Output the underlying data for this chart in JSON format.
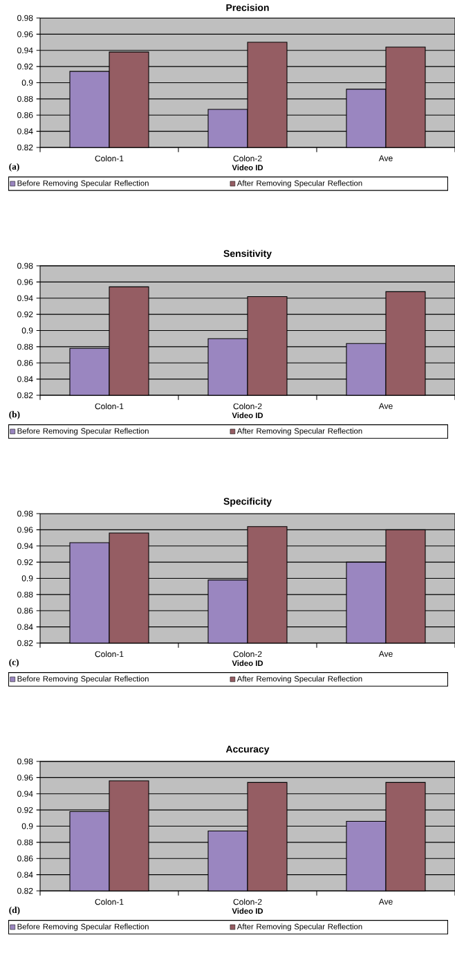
{
  "chart_data": [
    {
      "type": "bar",
      "title": "Precision",
      "xlabel": "Video ID",
      "categories": [
        "Colon-1",
        "Colon-2",
        "Ave"
      ],
      "series": [
        {
          "name": "Before Removing Specular Reflection",
          "color": "#9a86c0",
          "values": [
            0.914,
            0.867,
            0.892
          ]
        },
        {
          "name": "After Removing Specular Reflection",
          "color": "#955d63",
          "values": [
            0.938,
            0.95,
            0.944
          ]
        }
      ],
      "ylim": [
        0.82,
        0.98
      ],
      "yticks": [
        0.82,
        0.84,
        0.86,
        0.88,
        0.9,
        0.92,
        0.94,
        0.96,
        0.98
      ],
      "grid": "y",
      "legend": "bottom",
      "annotations": [
        "(a)"
      ]
    },
    {
      "type": "bar",
      "title": "Sensitivity",
      "xlabel": "Video ID",
      "categories": [
        "Colon-1",
        "Colon-2",
        "Ave"
      ],
      "series": [
        {
          "name": "Before Removing Specular Reflection",
          "color": "#9a86c0",
          "values": [
            0.878,
            0.89,
            0.884
          ]
        },
        {
          "name": "After Removing Specular Reflection",
          "color": "#955d63",
          "values": [
            0.954,
            0.942,
            0.948
          ]
        }
      ],
      "ylim": [
        0.82,
        0.98
      ],
      "yticks": [
        0.82,
        0.84,
        0.86,
        0.88,
        0.9,
        0.92,
        0.94,
        0.96,
        0.98
      ],
      "grid": "y",
      "legend": "bottom",
      "annotations": [
        "(b)"
      ]
    },
    {
      "type": "bar",
      "title": "Specificity",
      "xlabel": "Video ID",
      "categories": [
        "Colon-1",
        "Colon-2",
        "Ave"
      ],
      "series": [
        {
          "name": "Before Removing Specular Reflection",
          "color": "#9a86c0",
          "values": [
            0.944,
            0.898,
            0.92
          ]
        },
        {
          "name": "After Removing Specular Reflection",
          "color": "#955d63",
          "values": [
            0.956,
            0.964,
            0.96
          ]
        }
      ],
      "ylim": [
        0.82,
        0.98
      ],
      "yticks": [
        0.82,
        0.84,
        0.86,
        0.88,
        0.9,
        0.92,
        0.94,
        0.96,
        0.98
      ],
      "grid": "y",
      "legend": "bottom",
      "annotations": [
        "(c)"
      ]
    },
    {
      "type": "bar",
      "title": "Accuracy",
      "xlabel": "Video ID",
      "categories": [
        "Colon-1",
        "Colon-2",
        "Ave"
      ],
      "series": [
        {
          "name": "Before Removing Specular Reflection",
          "color": "#9a86c0",
          "values": [
            0.918,
            0.894,
            0.906
          ]
        },
        {
          "name": "After Removing Specular Reflection",
          "color": "#955d63",
          "values": [
            0.956,
            0.954,
            0.954
          ]
        }
      ],
      "ylim": [
        0.82,
        0.98
      ],
      "yticks": [
        0.82,
        0.84,
        0.86,
        0.88,
        0.9,
        0.92,
        0.94,
        0.96,
        0.98
      ],
      "grid": "y",
      "legend": "bottom",
      "annotations": [
        "(d)"
      ]
    }
  ]
}
